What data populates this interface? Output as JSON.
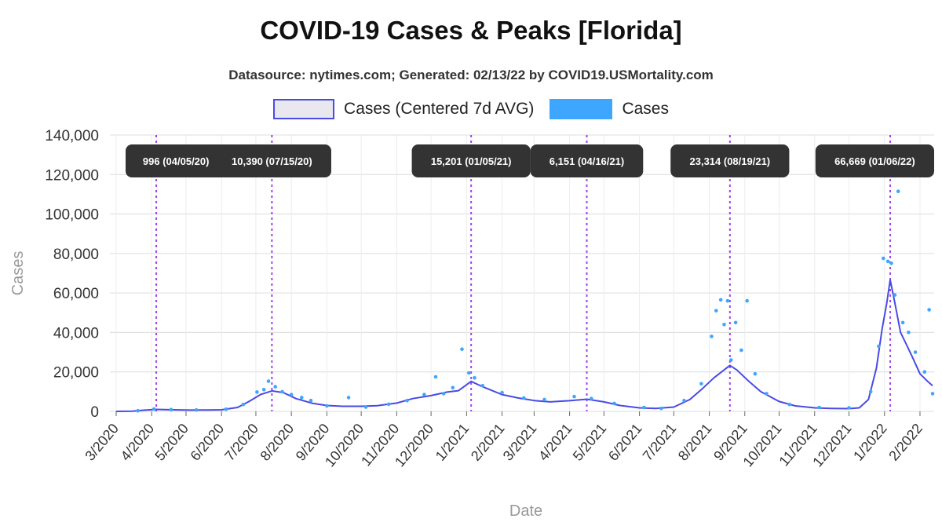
{
  "chart_data": {
    "type": "line",
    "title": "COVID-19 Cases & Peaks [Florida]",
    "subtitle": "Datasource: nytimes.com; Generated: 02/13/22 by COVID19.USMortality.com",
    "xlabel": "Date",
    "ylabel": "Cases",
    "ylim": [
      0,
      140000
    ],
    "yticks": [
      "0",
      "20,000",
      "40,000",
      "60,000",
      "80,000",
      "100,000",
      "120,000",
      "140,000"
    ],
    "xticks": [
      "3/2020",
      "4/2020",
      "5/2020",
      "6/2020",
      "7/2020",
      "8/2020",
      "9/2020",
      "10/2020",
      "11/2020",
      "12/2020",
      "1/2021",
      "2/2021",
      "3/2021",
      "4/2021",
      "5/2021",
      "6/2021",
      "7/2021",
      "8/2021",
      "9/2021",
      "10/2021",
      "11/2021",
      "12/2021",
      "1/2022",
      "2/2022"
    ],
    "grid": true,
    "legend_position": "top",
    "series": [
      {
        "name": "Cases (Centered 7d AVG)",
        "color": "#4a4ae6",
        "style": "line",
        "points": [
          [
            "2020-03-01",
            0
          ],
          [
            "2020-03-15",
            100
          ],
          [
            "2020-03-25",
            600
          ],
          [
            "2020-04-05",
            996
          ],
          [
            "2020-04-20",
            800
          ],
          [
            "2020-05-05",
            650
          ],
          [
            "2020-05-20",
            700
          ],
          [
            "2020-06-01",
            800
          ],
          [
            "2020-06-15",
            2000
          ],
          [
            "2020-06-25",
            5000
          ],
          [
            "2020-07-05",
            8500
          ],
          [
            "2020-07-15",
            10390
          ],
          [
            "2020-07-25",
            9500
          ],
          [
            "2020-08-05",
            6500
          ],
          [
            "2020-08-20",
            4000
          ],
          [
            "2020-09-01",
            3000
          ],
          [
            "2020-09-15",
            2600
          ],
          [
            "2020-10-01",
            2600
          ],
          [
            "2020-10-15",
            2900
          ],
          [
            "2020-11-01",
            4200
          ],
          [
            "2020-11-15",
            6500
          ],
          [
            "2020-12-01",
            8000
          ],
          [
            "2020-12-15",
            9800
          ],
          [
            "2020-12-25",
            10500
          ],
          [
            "2021-01-05",
            15201
          ],
          [
            "2021-01-15",
            12500
          ],
          [
            "2021-02-01",
            8500
          ],
          [
            "2021-02-15",
            6800
          ],
          [
            "2021-03-01",
            5500
          ],
          [
            "2021-03-15",
            4800
          ],
          [
            "2021-04-01",
            5400
          ],
          [
            "2021-04-16",
            6151
          ],
          [
            "2021-05-01",
            4800
          ],
          [
            "2021-05-15",
            3000
          ],
          [
            "2021-06-01",
            1800
          ],
          [
            "2021-06-15",
            1500
          ],
          [
            "2021-07-01",
            2200
          ],
          [
            "2021-07-15",
            6000
          ],
          [
            "2021-07-25",
            11000
          ],
          [
            "2021-08-05",
            17000
          ],
          [
            "2021-08-19",
            23314
          ],
          [
            "2021-08-25",
            21000
          ],
          [
            "2021-09-05",
            15000
          ],
          [
            "2021-09-15",
            10000
          ],
          [
            "2021-10-01",
            5000
          ],
          [
            "2021-10-15",
            2800
          ],
          [
            "2021-11-01",
            1800
          ],
          [
            "2021-11-15",
            1500
          ],
          [
            "2021-12-01",
            1400
          ],
          [
            "2021-12-10",
            1800
          ],
          [
            "2021-12-18",
            6000
          ],
          [
            "2021-12-25",
            22000
          ],
          [
            "2021-12-30",
            42000
          ],
          [
            "2022-01-03",
            55000
          ],
          [
            "2022-01-06",
            66669
          ],
          [
            "2022-01-10",
            55000
          ],
          [
            "2022-01-15",
            40000
          ],
          [
            "2022-01-20",
            34000
          ],
          [
            "2022-01-25",
            28000
          ],
          [
            "2022-02-01",
            19000
          ],
          [
            "2022-02-08",
            15000
          ],
          [
            "2022-02-12",
            13000
          ]
        ]
      },
      {
        "name": "Cases",
        "color": "#3ea6ff",
        "style": "points",
        "points": [
          [
            "2020-03-20",
            300
          ],
          [
            "2020-04-03",
            1200
          ],
          [
            "2020-04-18",
            900
          ],
          [
            "2020-05-10",
            700
          ],
          [
            "2020-06-05",
            1100
          ],
          [
            "2020-06-20",
            3500
          ],
          [
            "2020-07-02",
            9800
          ],
          [
            "2020-07-08",
            11000
          ],
          [
            "2020-07-12",
            15300
          ],
          [
            "2020-07-18",
            12500
          ],
          [
            "2020-07-24",
            10000
          ],
          [
            "2020-08-01",
            8500
          ],
          [
            "2020-08-10",
            7000
          ],
          [
            "2020-08-18",
            5500
          ],
          [
            "2020-09-01",
            2800
          ],
          [
            "2020-09-20",
            7000
          ],
          [
            "2020-10-05",
            2200
          ],
          [
            "2020-10-25",
            3600
          ],
          [
            "2020-11-10",
            5500
          ],
          [
            "2020-11-25",
            8500
          ],
          [
            "2020-12-05",
            17500
          ],
          [
            "2020-12-12",
            9000
          ],
          [
            "2020-12-20",
            12000
          ],
          [
            "2020-12-28",
            31500
          ],
          [
            "2021-01-03",
            19500
          ],
          [
            "2021-01-08",
            17000
          ],
          [
            "2021-01-15",
            13000
          ],
          [
            "2021-02-01",
            9500
          ],
          [
            "2021-02-20",
            6800
          ],
          [
            "2021-03-10",
            6000
          ],
          [
            "2021-04-05",
            7500
          ],
          [
            "2021-04-20",
            6500
          ],
          [
            "2021-05-10",
            4000
          ],
          [
            "2021-06-05",
            2000
          ],
          [
            "2021-06-20",
            1500
          ],
          [
            "2021-07-10",
            5500
          ],
          [
            "2021-07-25",
            14000
          ],
          [
            "2021-08-03",
            38000
          ],
          [
            "2021-08-07",
            51000
          ],
          [
            "2021-08-11",
            56500
          ],
          [
            "2021-08-14",
            44000
          ],
          [
            "2021-08-17",
            56000
          ],
          [
            "2021-08-20",
            26000
          ],
          [
            "2021-08-24",
            45000
          ],
          [
            "2021-08-29",
            31000
          ],
          [
            "2021-09-03",
            56000
          ],
          [
            "2021-09-10",
            19000
          ],
          [
            "2021-09-20",
            9000
          ],
          [
            "2021-10-10",
            3500
          ],
          [
            "2021-11-05",
            2000
          ],
          [
            "2021-12-01",
            1800
          ],
          [
            "2021-12-20",
            10000
          ],
          [
            "2021-12-27",
            33000
          ],
          [
            "2021-12-31",
            77500
          ],
          [
            "2022-01-04",
            76000
          ],
          [
            "2022-01-07",
            75000
          ],
          [
            "2022-01-10",
            59000
          ],
          [
            "2022-01-13",
            111500
          ],
          [
            "2022-01-17",
            45000
          ],
          [
            "2022-01-22",
            40000
          ],
          [
            "2022-01-28",
            30000
          ],
          [
            "2022-02-05",
            20000
          ],
          [
            "2022-02-09",
            51500
          ],
          [
            "2022-02-12",
            9000
          ]
        ]
      }
    ],
    "peaks": [
      {
        "date": "2020-04-05",
        "label": "996 (04/05/20)"
      },
      {
        "date": "2020-07-15",
        "label": "10,390 (07/15/20)"
      },
      {
        "date": "2021-01-05",
        "label": "15,201 (01/05/21)"
      },
      {
        "date": "2021-04-16",
        "label": "6,151 (04/16/21)"
      },
      {
        "date": "2021-08-19",
        "label": "23,314 (08/19/21)"
      },
      {
        "date": "2022-01-06",
        "label": "66,669 (01/06/22)"
      }
    ],
    "peak_line_color": "#a040f0"
  }
}
